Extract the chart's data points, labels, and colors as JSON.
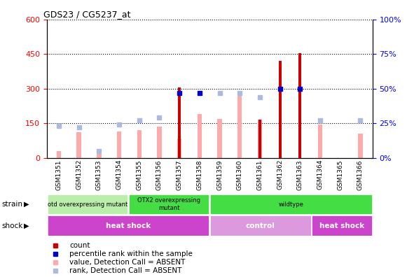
{
  "title": "GDS23 / CG5237_at",
  "samples": [
    "GSM1351",
    "GSM1352",
    "GSM1353",
    "GSM1354",
    "GSM1355",
    "GSM1356",
    "GSM1357",
    "GSM1358",
    "GSM1359",
    "GSM1360",
    "GSM1361",
    "GSM1362",
    "GSM1363",
    "GSM1364",
    "GSM1365",
    "GSM1366"
  ],
  "count_values": [
    null,
    null,
    null,
    null,
    null,
    null,
    305,
    null,
    null,
    null,
    165,
    420,
    455,
    null,
    null,
    null
  ],
  "rank_pct": [
    null,
    null,
    null,
    null,
    null,
    null,
    47,
    47,
    null,
    null,
    null,
    50,
    50,
    null,
    null,
    null
  ],
  "absent_value": [
    28,
    110,
    30,
    115,
    120,
    135,
    85,
    190,
    170,
    275,
    165,
    null,
    null,
    145,
    null,
    105
  ],
  "absent_rank_pct": [
    23,
    22,
    5,
    24,
    27,
    29,
    null,
    null,
    47,
    47,
    44,
    null,
    null,
    27,
    null,
    27
  ],
  "ylim_left": [
    0,
    600
  ],
  "ylim_right": [
    0,
    100
  ],
  "yticks_left": [
    0,
    150,
    300,
    450,
    600
  ],
  "yticks_right": [
    0,
    25,
    50,
    75,
    100
  ],
  "color_count": "#cc0000",
  "color_rank": "#0000cc",
  "color_absent_value": "#ffaaaa",
  "color_absent_rank": "#aabbdd",
  "bar_width": 0.25,
  "strain_groups": [
    {
      "label": "otd overexpressing mutant",
      "start": 0,
      "end": 4,
      "color": "#bbeeaa"
    },
    {
      "label": "OTX2 overexpressing\nmutant",
      "start": 4,
      "end": 8,
      "color": "#44dd44"
    },
    {
      "label": "wildtype",
      "start": 8,
      "end": 16,
      "color": "#44dd44"
    }
  ],
  "shock_groups": [
    {
      "label": "heat shock",
      "start": 0,
      "end": 8,
      "color": "#cc44cc"
    },
    {
      "label": "control",
      "start": 8,
      "end": 13,
      "color": "#dd99dd"
    },
    {
      "label": "heat shock",
      "start": 13,
      "end": 16,
      "color": "#cc44cc"
    }
  ],
  "legend_items": [
    {
      "color": "#cc0000",
      "marker": "s",
      "label": "count"
    },
    {
      "color": "#0000cc",
      "marker": "s",
      "label": "percentile rank within the sample"
    },
    {
      "color": "#ffaaaa",
      "marker": "s",
      "label": "value, Detection Call = ABSENT"
    },
    {
      "color": "#aabbdd",
      "marker": "s",
      "label": "rank, Detection Call = ABSENT"
    }
  ]
}
